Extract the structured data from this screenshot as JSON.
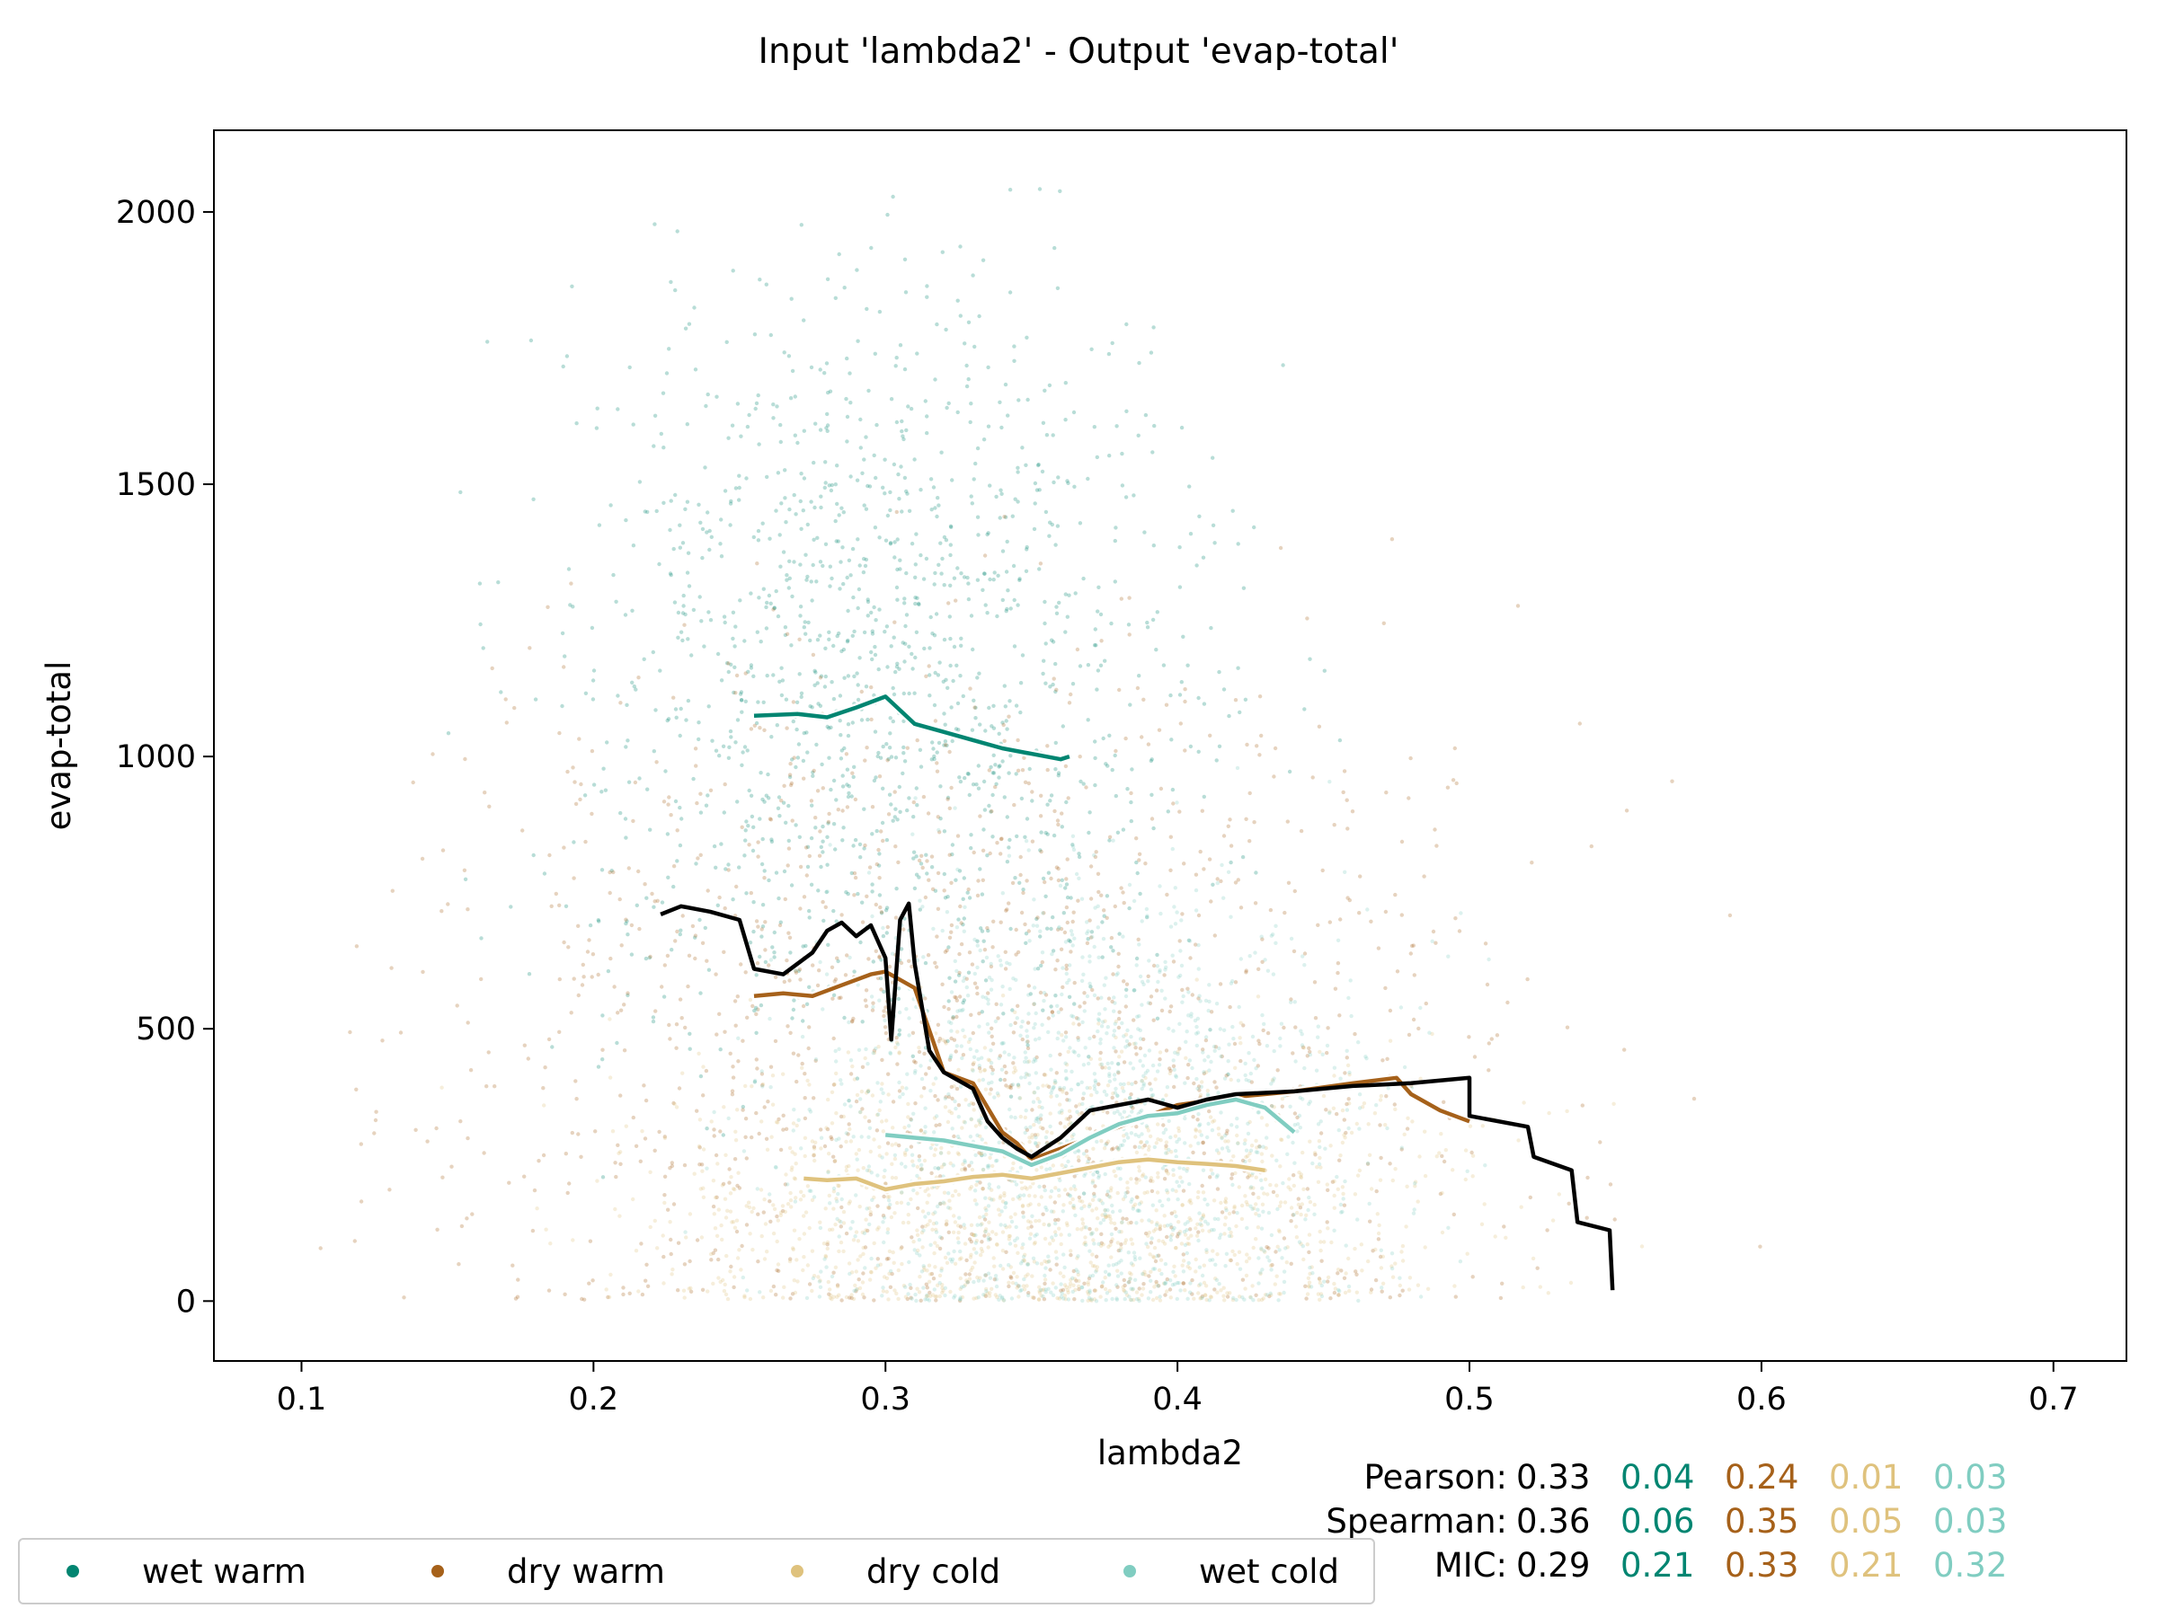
{
  "colors": {
    "overall": "#000000",
    "wet_warm": "#018571",
    "dry_warm": "#a6611a",
    "dry_cold": "#dfc27d",
    "wet_cold": "#80cdc1"
  },
  "chart_data": {
    "type": "scatter",
    "title": "Input 'lambda2' - Output 'evap-total'",
    "xlabel": "lambda2",
    "ylabel": "evap-total",
    "xlim": [
      0.07,
      0.725
    ],
    "ylim": [
      -110,
      2150
    ],
    "xticks": [
      0.1,
      0.2,
      0.3,
      0.4,
      0.5,
      0.6,
      0.7
    ],
    "xtick_labels": [
      "0.1",
      "0.2",
      "0.3",
      "0.4",
      "0.5",
      "0.6",
      "0.7"
    ],
    "yticks": [
      0,
      500,
      1000,
      1500,
      2000
    ],
    "ytick_labels": [
      "0",
      "500",
      "1000",
      "1500",
      "2000"
    ],
    "grid": false,
    "legend_position": "bottom-left",
    "scatter_note": "dense point clouds per category; lines show running means",
    "series": [
      {
        "name": "wet warm",
        "color_key": "wet_warm",
        "kind": "line",
        "x": [
          0.255,
          0.27,
          0.28,
          0.29,
          0.295,
          0.3,
          0.305,
          0.31,
          0.32,
          0.33,
          0.34,
          0.35,
          0.36,
          0.363
        ],
        "y": [
          1075,
          1078,
          1072,
          1090,
          1100,
          1110,
          1085,
          1060,
          1045,
          1030,
          1015,
          1005,
          995,
          1000
        ]
      },
      {
        "name": "dry warm",
        "color_key": "dry_warm",
        "kind": "line",
        "x": [
          0.255,
          0.265,
          0.275,
          0.285,
          0.295,
          0.3,
          0.305,
          0.31,
          0.32,
          0.33,
          0.34,
          0.345,
          0.35,
          0.36,
          0.37,
          0.38,
          0.39,
          0.4,
          0.42,
          0.44,
          0.46,
          0.475,
          0.48,
          0.49,
          0.5
        ],
        "y": [
          560,
          565,
          560,
          580,
          600,
          605,
          590,
          575,
          420,
          400,
          310,
          290,
          260,
          280,
          300,
          320,
          340,
          360,
          375,
          385,
          400,
          410,
          380,
          350,
          330
        ]
      },
      {
        "name": "dry cold",
        "color_key": "dry_cold",
        "kind": "line",
        "x": [
          0.272,
          0.28,
          0.29,
          0.3,
          0.31,
          0.32,
          0.33,
          0.34,
          0.35,
          0.36,
          0.37,
          0.38,
          0.39,
          0.4,
          0.41,
          0.42,
          0.43
        ],
        "y": [
          225,
          222,
          225,
          205,
          215,
          220,
          228,
          232,
          225,
          235,
          245,
          255,
          260,
          255,
          252,
          248,
          240
        ]
      },
      {
        "name": "wet cold",
        "color_key": "wet_cold",
        "kind": "line",
        "x": [
          0.3,
          0.31,
          0.32,
          0.33,
          0.34,
          0.35,
          0.36,
          0.37,
          0.38,
          0.39,
          0.4,
          0.41,
          0.42,
          0.43,
          0.44
        ],
        "y": [
          305,
          300,
          295,
          285,
          275,
          250,
          270,
          300,
          325,
          340,
          345,
          360,
          370,
          355,
          310
        ]
      },
      {
        "name": "overall",
        "color_key": "overall",
        "kind": "line",
        "x": [
          0.223,
          0.23,
          0.24,
          0.25,
          0.255,
          0.265,
          0.275,
          0.28,
          0.285,
          0.29,
          0.295,
          0.3,
          0.302,
          0.305,
          0.308,
          0.31,
          0.315,
          0.32,
          0.33,
          0.335,
          0.34,
          0.345,
          0.35,
          0.36,
          0.37,
          0.38,
          0.39,
          0.4,
          0.41,
          0.42,
          0.44,
          0.46,
          0.48,
          0.49,
          0.5,
          0.5,
          0.52,
          0.522,
          0.535,
          0.537,
          0.548,
          0.549
        ],
        "y": [
          710,
          725,
          715,
          700,
          610,
          600,
          640,
          680,
          695,
          670,
          690,
          630,
          480,
          700,
          730,
          620,
          460,
          420,
          390,
          330,
          300,
          280,
          265,
          300,
          350,
          360,
          370,
          355,
          370,
          380,
          385,
          395,
          400,
          405,
          410,
          340,
          320,
          265,
          240,
          145,
          130,
          20
        ]
      }
    ],
    "clouds": [
      {
        "name": "wet warm",
        "color_key": "wet_warm",
        "cx": 0.3,
        "cy": 1150,
        "sx": 0.055,
        "sy": 360
      },
      {
        "name": "dry warm",
        "color_key": "dry_warm",
        "cx": 0.33,
        "cy": 520,
        "sx": 0.09,
        "sy": 340
      },
      {
        "name": "dry cold",
        "color_key": "dry_cold",
        "cx": 0.36,
        "cy": 180,
        "sx": 0.07,
        "sy": 150
      },
      {
        "name": "wet cold",
        "color_key": "wet_cold",
        "cx": 0.37,
        "cy": 320,
        "sx": 0.05,
        "sy": 220
      }
    ]
  },
  "legend": {
    "items": [
      {
        "label": "wet warm",
        "color_key": "wet_warm"
      },
      {
        "label": "dry warm",
        "color_key": "dry_warm"
      },
      {
        "label": "dry cold",
        "color_key": "dry_cold"
      },
      {
        "label": "wet cold",
        "color_key": "wet_cold"
      }
    ]
  },
  "stats": {
    "pearson": {
      "label": "Pearson:",
      "values": [
        "0.33",
        "0.04",
        "0.24",
        "0.01",
        "0.03"
      ]
    },
    "spearman": {
      "label": "Spearman:",
      "values": [
        "0.36",
        "0.06",
        "0.35",
        "0.05",
        "0.03"
      ]
    },
    "mic": {
      "label": "MIC:",
      "values": [
        "0.29",
        "0.21",
        "0.33",
        "0.21",
        "0.32"
      ]
    }
  }
}
